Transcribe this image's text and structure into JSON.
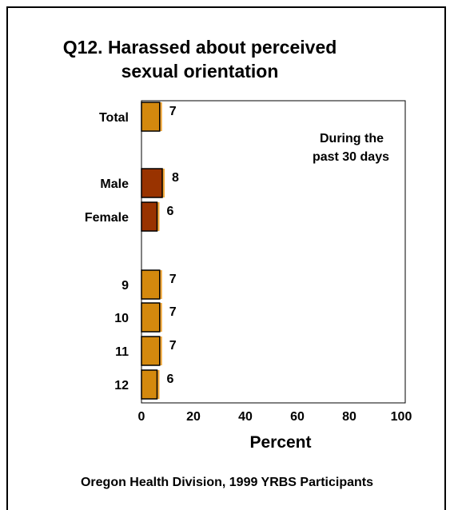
{
  "title_lines": [
    "Q12. Harassed about perceived",
    "sexual orientation"
  ],
  "footer": "Oregon Health Division, 1999 YRBS Participants",
  "note_lines": [
    "During the",
    "past 30 days"
  ],
  "chart_data": {
    "type": "bar",
    "orientation": "horizontal",
    "title": "Q12. Harassed about perceived sexual orientation",
    "xlabel": "Percent",
    "ylabel": "",
    "xlim": [
      0,
      100
    ],
    "xticks": [
      0,
      20,
      40,
      60,
      80,
      100
    ],
    "grid": false,
    "categories": [
      "Total",
      "Male",
      "Female",
      "9",
      "10",
      "11",
      "12"
    ],
    "values": [
      7,
      8,
      6,
      7,
      7,
      7,
      6
    ],
    "groups": [
      "total",
      "sex",
      "sex",
      "grade",
      "grade",
      "grade",
      "grade"
    ],
    "colors": {
      "total": "#D4890E",
      "sex": "#993300",
      "grade": "#D4890E",
      "shadow": "#F2A93B"
    }
  }
}
